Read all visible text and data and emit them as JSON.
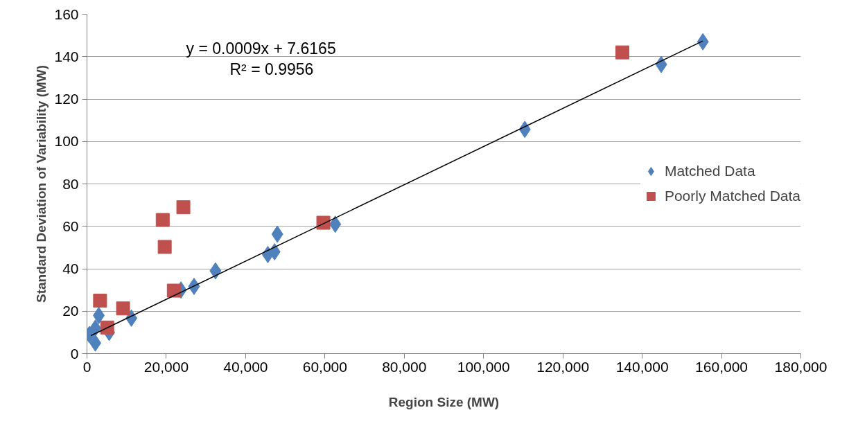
{
  "chart_data": {
    "type": "scatter",
    "xlabel": "Region Size (MW)",
    "ylabel": "Standard Deviation of Variability (MW)",
    "annotations": [
      "y = 0.0009x + 7.6165",
      "R² = 0.9956"
    ],
    "series": [
      {
        "name": "Matched Data",
        "color": "#4f81bd",
        "marker": "diamond",
        "x": [
          600,
          2100,
          2100,
          2980,
          5600,
          11200,
          23700,
          27000,
          32400,
          45600,
          47300,
          48000,
          62600,
          110400,
          144800,
          155300
        ],
        "values": [
          9,
          12,
          5,
          18,
          10,
          16.7,
          30,
          31.7,
          39,
          46.7,
          48,
          56.3,
          61,
          105.7,
          136.3,
          147
        ]
      },
      {
        "name": "Poorly Matched Data",
        "color": "#c0504d",
        "marker": "square",
        "x": [
          3300,
          5100,
          9100,
          19100,
          19600,
          21900,
          24300,
          59600,
          135000
        ],
        "values": [
          25,
          12.3,
          21.3,
          63,
          50.3,
          29.7,
          69,
          61.7,
          142
        ]
      },
      {
        "type": "line",
        "color": "#000000",
        "x": [
          1000,
          155300
        ],
        "values": [
          8.5,
          147.4
        ]
      }
    ],
    "xlim": [
      0,
      180000
    ],
    "ylim": [
      0,
      160
    ],
    "xticks": [
      0,
      {
        "value": 20000,
        "label": "20,000"
      },
      {
        "value": 40000,
        "label": "40,000"
      },
      {
        "value": 60000,
        "label": "60,000"
      },
      {
        "value": 80000,
        "label": "80,000"
      },
      {
        "value": 100000,
        "label": "100,000"
      },
      {
        "value": 120000,
        "label": "120,000"
      },
      {
        "value": 140000,
        "label": "140,000"
      },
      {
        "value": 160000,
        "label": "160,000"
      },
      {
        "value": 180000,
        "label": "180,000"
      }
    ],
    "yticks": [
      0,
      20,
      40,
      60,
      80,
      100,
      120,
      140,
      160
    ],
    "grid": "y",
    "legend": "right"
  }
}
